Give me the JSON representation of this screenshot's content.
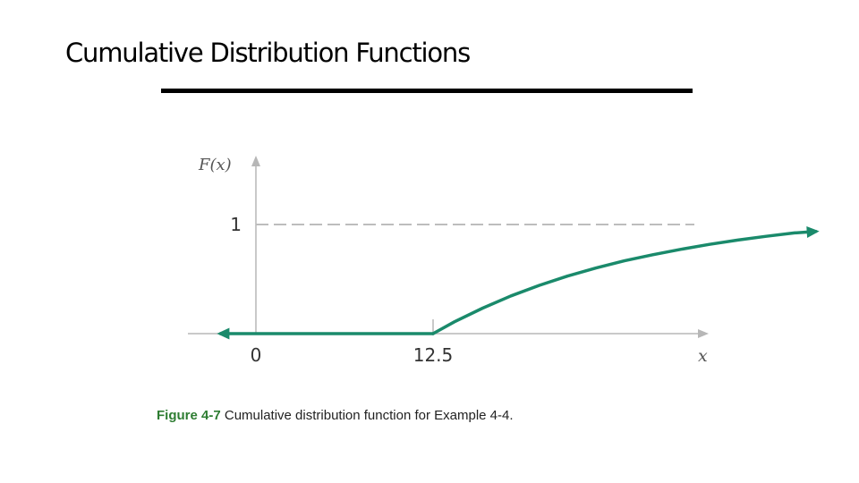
{
  "slide": {
    "title": "Cumulative Distribution Functions"
  },
  "caption": {
    "label": "Figure 4-7",
    "text": " Cumulative distribution function for Example 4-4."
  },
  "colors": {
    "curve": "#1a8a6b",
    "axis": "#b7b7b7",
    "reference_line": "#bdbdbd",
    "caption_label": "#2e7d32"
  },
  "chart_data": {
    "type": "line",
    "xlabel": "x",
    "ylabel": "F(x)",
    "x_ticks": [
      "0",
      "12.5"
    ],
    "y_ticks": [
      "1"
    ],
    "xlim": [
      -2.5,
      40
    ],
    "ylim": [
      0,
      1
    ],
    "horizontal_reference": 1,
    "series": [
      {
        "x": [
          -2.5,
          0,
          12.5
        ],
        "y": [
          0,
          0,
          0
        ],
        "arrow": "left"
      },
      {
        "x": [
          12.5,
          14,
          16,
          18,
          20,
          22,
          24,
          26,
          28,
          30,
          32,
          34,
          36,
          38,
          39.5
        ],
        "y": [
          0,
          0.108,
          0.234,
          0.346,
          0.443,
          0.528,
          0.602,
          0.667,
          0.723,
          0.773,
          0.818,
          0.857,
          0.892,
          0.923,
          0.936
        ],
        "arrow": "right"
      }
    ]
  }
}
